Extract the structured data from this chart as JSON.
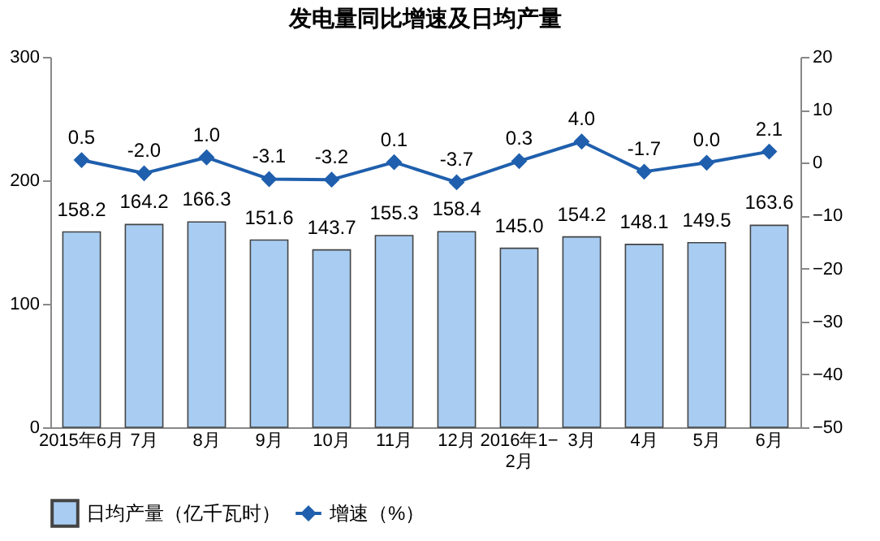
{
  "chart_data": {
    "type": "bar",
    "title": "发电量同比增速及日均产量",
    "categories": [
      "2015年6月",
      "7月",
      "8月",
      "9月",
      "10月",
      "11月",
      "12月",
      "2016年1−2月",
      "3月",
      "4月",
      "5月",
      "6月"
    ],
    "series": [
      {
        "name": "日均产量（亿千瓦时）",
        "color": "#a9cdf2",
        "values": [
          158.2,
          164.2,
          166.3,
          151.6,
          143.7,
          155.3,
          158.4,
          145.0,
          154.2,
          148.1,
          149.5,
          163.6
        ],
        "value_labels": [
          "158.2",
          "164.2",
          "166.3",
          "151.6",
          "143.7",
          "155.3",
          "158.4",
          "145.0",
          "154.2",
          "148.1",
          "149.5",
          "163.6"
        ]
      },
      {
        "name": "增速（%）",
        "type": "line",
        "axis": "y2",
        "color": "#1f5fad",
        "marker": "diamond",
        "values": [
          0.5,
          -2.0,
          1.0,
          -3.1,
          -3.2,
          0.1,
          -3.7,
          0.3,
          4.0,
          -1.7,
          0.0,
          2.1
        ],
        "value_labels": [
          "0.5",
          "-2.0",
          "1.0",
          "-3.1",
          "-3.2",
          "0.1",
          "-3.7",
          "0.3",
          "4.0",
          "-1.7",
          "0.0",
          "2.1"
        ]
      }
    ],
    "ylim": [
      0,
      300
    ],
    "yticks": [
      0,
      100,
      200,
      300
    ],
    "y2lim": [
      -50,
      20
    ],
    "y2ticks": [
      -50,
      -40,
      -30,
      -20,
      -10,
      0,
      10,
      20
    ],
    "legend": "bottom",
    "grid": false
  }
}
